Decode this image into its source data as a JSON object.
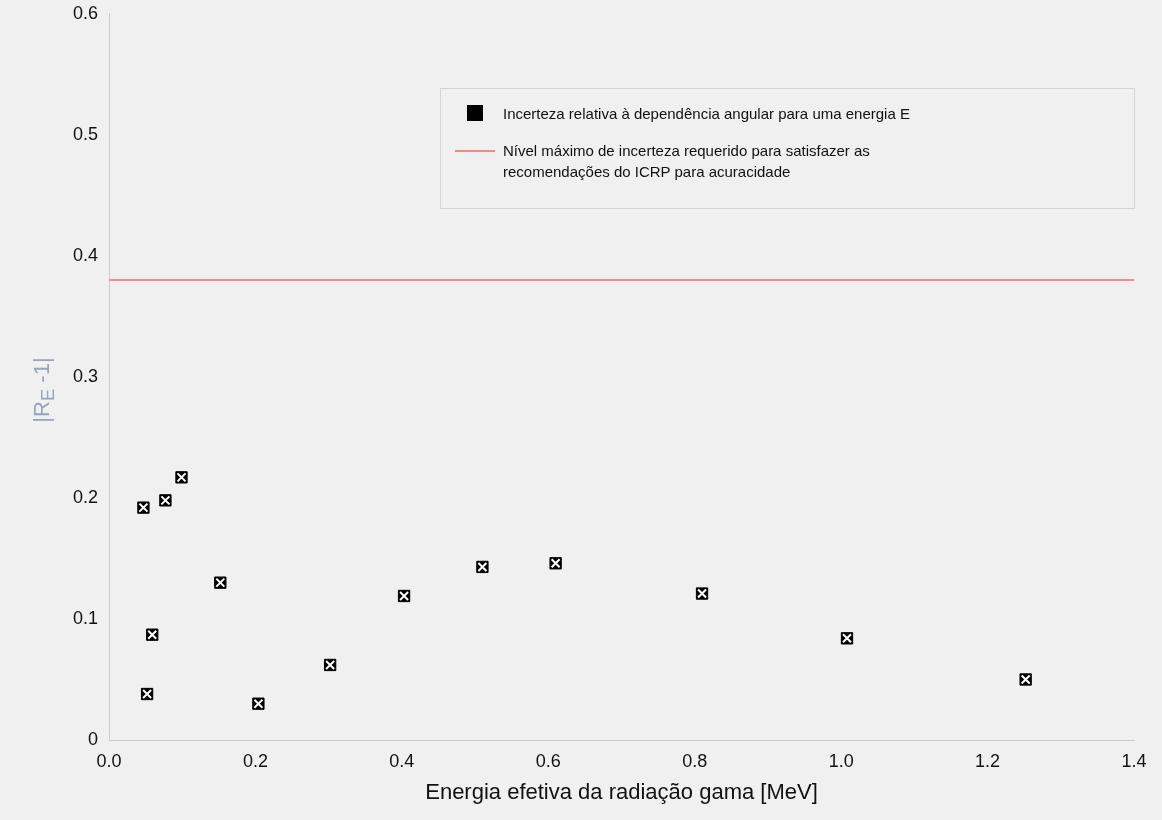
{
  "chart_data": {
    "type": "scatter",
    "xlabel": "Energia efetiva da radiação gama [MeV]",
    "ylabel": "|R$_{E}$ -1|",
    "series": [
      {
        "name": "Incerteza relativa à dependência angular para uma energia E",
        "color": "#000000",
        "x": [
          0.047,
          0.052,
          0.059,
          0.077,
          0.099,
          0.152,
          0.204,
          0.302,
          0.403,
          0.51,
          0.61,
          0.81,
          1.008,
          1.252
        ],
        "values": [
          0.192,
          0.038,
          0.087,
          0.198,
          0.217,
          0.13,
          0.03,
          0.062,
          0.119,
          0.143,
          0.146,
          0.121,
          0.084,
          0.05
        ]
      }
    ],
    "ref_lines": [
      {
        "axis": "y",
        "value": 0.38,
        "label": "Nível máximo de incerteza requerido para satisfazer as recomendações do ICRP para acuracidade",
        "color": "#f08a8a"
      }
    ],
    "xlim": [
      0,
      1.4
    ],
    "xticks": [
      {
        "value": 0,
        "label": "0.0"
      },
      0.2,
      0.4,
      0.6,
      0.8,
      {
        "value": 1,
        "label": "1.0"
      },
      1.2,
      1.4
    ],
    "ylim": [
      0,
      0.6
    ],
    "yticks": [
      0,
      0.1,
      0.2,
      0.3,
      0.4,
      0.5,
      0.6
    ],
    "marker": "square",
    "legend": "top right"
  }
}
